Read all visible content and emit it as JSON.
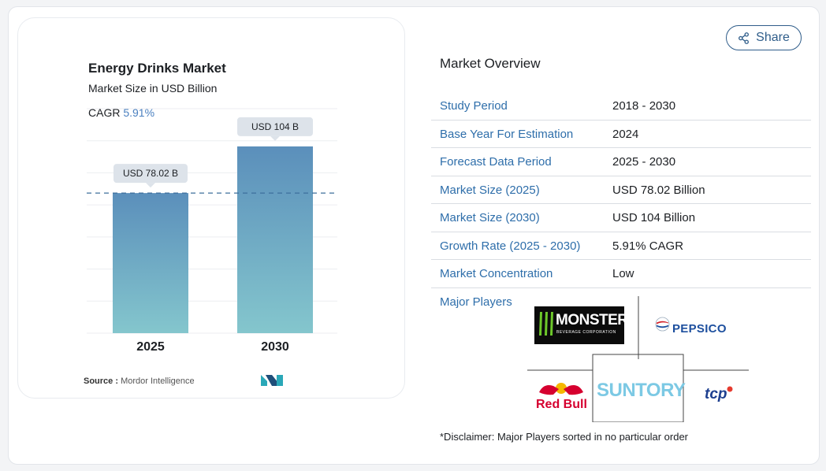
{
  "chart_title": "Energy Drinks Market",
  "chart_subtitle": "Market Size in USD Billion",
  "cagr_label": "CAGR",
  "cagr_value": "5.91%",
  "source_label": "Source :",
  "source_value": "Mordor Intelligence",
  "share_label": "Share",
  "overview_title": "Market Overview",
  "overview": [
    {
      "key": "Study Period",
      "value": "2018 - 2030"
    },
    {
      "key": "Base Year For Estimation",
      "value": "2024"
    },
    {
      "key": "Forecast Data Period",
      "value": "2025 - 2030"
    },
    {
      "key": "Market Size (2025)",
      "value": "USD 78.02 Billion"
    },
    {
      "key": "Market Size (2030)",
      "value": "USD 104 Billion"
    },
    {
      "key": "Growth Rate (2025 - 2030)",
      "value": "5.91% CAGR"
    },
    {
      "key": "Market Concentration",
      "value": "Low"
    }
  ],
  "major_players_label": "Major Players",
  "players": {
    "monster": "MONSTER",
    "monster_sub": "BEVERAGE CORPORATION",
    "pepsico": "PEPSICO",
    "redbull": "Red Bull",
    "suntory": "SUNTORY",
    "tcp": "tcp"
  },
  "disclaimer": "*Disclaimer: Major Players sorted in no particular order",
  "colors": {
    "bar_top": "#5b8fbb",
    "bar_bottom": "#84c6cd",
    "link": "#2e6eaa",
    "accent": "#4b80c0"
  },
  "chart_data": {
    "type": "bar",
    "title": "Energy Drinks Market",
    "subtitle": "Market Size in USD Billion",
    "categories": [
      "2025",
      "2030"
    ],
    "values": [
      78.02,
      104
    ],
    "value_labels": [
      "USD 78.02 B",
      "USD 104 B"
    ],
    "ylim": [
      0,
      125
    ],
    "reference_line": 78.02,
    "grid": true
  }
}
